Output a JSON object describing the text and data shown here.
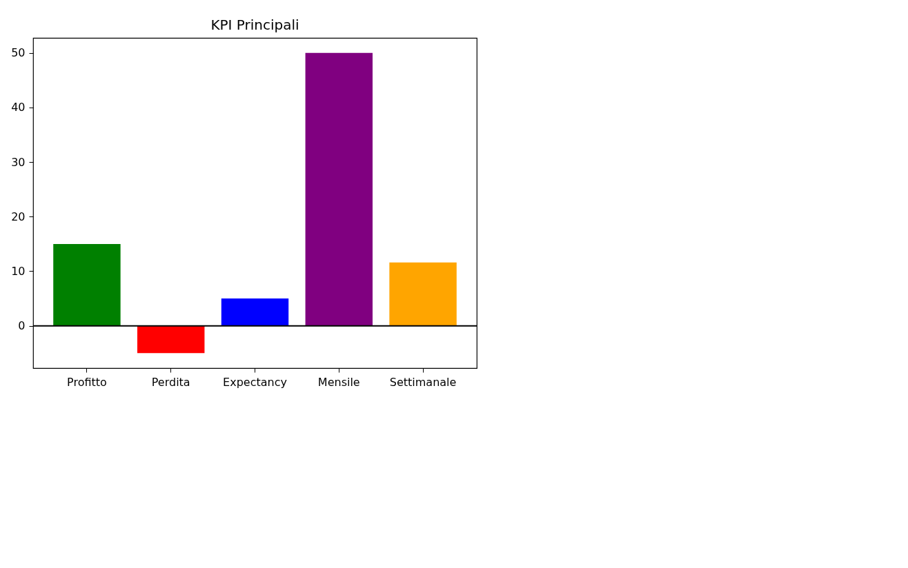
{
  "chart_data": {
    "type": "bar",
    "title": "KPI Principali",
    "categories": [
      "Profitto",
      "Perdita",
      "Expectancy",
      "Mensile",
      "Settimanale"
    ],
    "values": [
      15,
      -5,
      5,
      50,
      11.6
    ],
    "colors": [
      "#008000",
      "#ff0000",
      "#0000ff",
      "#800080",
      "#ffa500"
    ],
    "ylim": [
      -7.75,
      52.75
    ],
    "yticks": [
      0,
      10,
      20,
      30,
      40,
      50
    ],
    "grid": false,
    "ref_lines": [
      {
        "axis": "y",
        "value": 0,
        "color": "#000000"
      }
    ]
  }
}
